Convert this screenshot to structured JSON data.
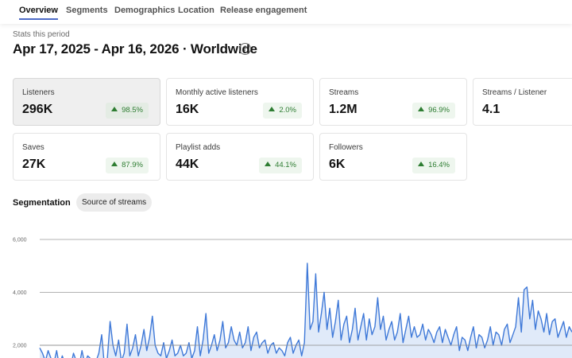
{
  "tabs": [
    {
      "label": "Overview",
      "active": true
    },
    {
      "label": "Segments",
      "active": false
    },
    {
      "label": "Demographics",
      "active": false
    },
    {
      "label": "Location",
      "active": false
    },
    {
      "label": "Release engagement",
      "active": false
    }
  ],
  "header": {
    "period_label": "Stats this period",
    "title": "Apr 17, 2025 - Apr 16, 2026 · Worldwide",
    "help_icon": "?"
  },
  "stats": [
    {
      "label": "Listeners",
      "value": "296K",
      "change": "98.5%",
      "selected": true
    },
    {
      "label": "Monthly active listeners",
      "value": "16K",
      "change": "2.0%"
    },
    {
      "label": "Streams",
      "value": "1.2M",
      "change": "96.9%"
    },
    {
      "label": "Streams / Listener",
      "value": "4.1",
      "change": ""
    },
    {
      "label": "Saves",
      "value": "27K",
      "change": "87.9%"
    },
    {
      "label": "Playlist adds",
      "value": "44K",
      "change": "44.1%"
    },
    {
      "label": "Followers",
      "value": "6K",
      "change": "16.4%"
    }
  ],
  "segmentation": {
    "label": "Segmentation",
    "chip": "Source of streams"
  },
  "colors": {
    "accent": "#4d6cc7",
    "line": "#3f79d8",
    "fill": "#dbe6f8",
    "positive": "#2e7d32"
  },
  "chart_data": {
    "type": "area",
    "ylabel": "",
    "yticks": [
      2000,
      4000,
      6000
    ],
    "ytick_labels": [
      "2,000",
      "4,000",
      "6,000"
    ],
    "ylim": [
      1500,
      6000
    ],
    "grid": true,
    "series": [
      {
        "values": [
          1900,
          1700,
          1400,
          1800,
          1500,
          1300,
          1800,
          1200,
          1600,
          1300,
          1500,
          1200,
          1700,
          1400,
          1200,
          1800,
          1300,
          1600,
          1500,
          1200,
          1400,
          1700,
          2400,
          1200,
          1500,
          2900,
          2000,
          1600,
          2200,
          1400,
          1700,
          2800,
          1600,
          1900,
          2400,
          1600,
          2000,
          2600,
          1800,
          2300,
          3100,
          2000,
          1700,
          1600,
          2100,
          1500,
          1800,
          2200,
          1600,
          1700,
          2000,
          1600,
          1700,
          2100,
          1500,
          1800,
          2700,
          1600,
          2200,
          3200,
          1700,
          2000,
          2400,
          1800,
          2200,
          2900,
          1900,
          2100,
          2700,
          2200,
          2000,
          2500,
          1900,
          2100,
          2700,
          1800,
          2300,
          2500,
          1900,
          2100,
          2200,
          1700,
          2000,
          2100,
          1700,
          1900,
          1800,
          1600,
          2100,
          2300,
          1700,
          2000,
          2200,
          1600,
          2100,
          5100,
          2600,
          2900,
          4700,
          2500,
          3200,
          4000,
          2600,
          3400,
          2300,
          2900,
          3700,
          2200,
          2800,
          3100,
          2100,
          2600,
          3400,
          2200,
          2700,
          3200,
          2200,
          3000,
          2400,
          2700,
          3800,
          2600,
          3100,
          2200,
          2600,
          2900,
          2200,
          2500,
          3200,
          2100,
          2600,
          3100,
          2300,
          2700,
          2300,
          2400,
          2800,
          2200,
          2600,
          2400,
          2100,
          2500,
          2700,
          2100,
          2600,
          2300,
          2000,
          2400,
          2700,
          1800,
          2300,
          2200,
          1800,
          2300,
          2700,
          1900,
          2400,
          2300,
          1900,
          2200,
          2700,
          2000,
          2500,
          2400,
          2000,
          2600,
          2800,
          2100,
          2400,
          2700,
          3800,
          2500,
          4100,
          4200,
          3000,
          3700,
          2600,
          3300,
          3000,
          2500,
          3200,
          2400,
          2900,
          3000,
          2300,
          2600,
          2900,
          2300,
          2700,
          2500
        ]
      }
    ]
  }
}
